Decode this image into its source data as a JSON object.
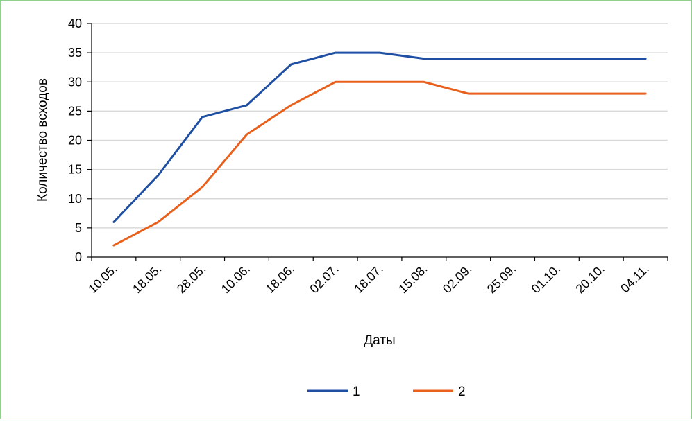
{
  "colors": {
    "series_1": "#1f4fa3",
    "series_2": "#e8601c",
    "grid": "#d9d9d9",
    "axis": "#000000",
    "frame": "#8fd08f"
  },
  "chart_data": {
    "type": "line",
    "title": "",
    "xlabel": "Даты",
    "ylabel": "Количество всходов",
    "categories": [
      "10.05.",
      "18.05.",
      "28.05.",
      "10.06.",
      "18.06.",
      "02.07.",
      "18.07.",
      "15.08.",
      "02.09.",
      "25.09.",
      "01.10.",
      "20.10.",
      "04.11."
    ],
    "ylim": [
      0,
      40
    ],
    "yticks": [
      0,
      5,
      10,
      15,
      20,
      25,
      30,
      35,
      40
    ],
    "grid": true,
    "legend": "bottom",
    "series": [
      {
        "name": "1",
        "values": [
          6,
          14,
          24,
          26,
          33,
          35,
          35,
          34,
          34,
          34,
          34,
          34,
          34
        ]
      },
      {
        "name": "2",
        "values": [
          2,
          6,
          12,
          21,
          26,
          30,
          30,
          30,
          28,
          28,
          28,
          28,
          28
        ]
      }
    ]
  }
}
